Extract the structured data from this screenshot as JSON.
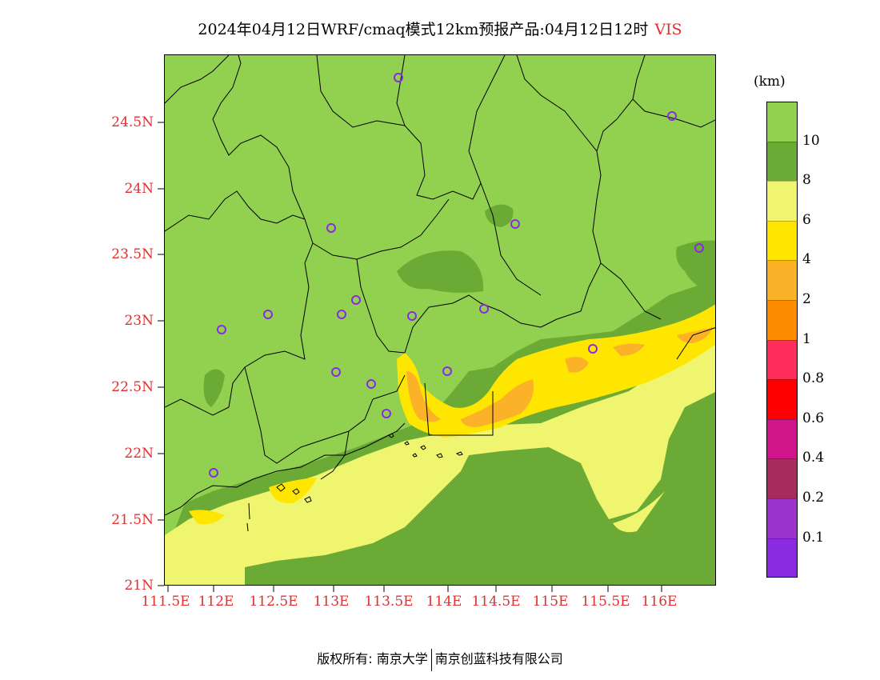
{
  "title": {
    "main": "2024年04月12日WRF/cmaq模式12km预报产品:04月12日12时",
    "variable": "VIS"
  },
  "axes": {
    "y_ticks": [
      "24.5N",
      "24N",
      "23.5N",
      "23N",
      "22.5N",
      "22N",
      "21.5N",
      "21N"
    ],
    "x_ticks": [
      "111.5E",
      "112E",
      "112.5E",
      "113E",
      "113.5E",
      "114E",
      "114.5E",
      "115E",
      "115.5E",
      "116E"
    ]
  },
  "colorbar": {
    "unit": "(km)",
    "labels": [
      "10",
      "8",
      "6",
      "4",
      "2",
      "1",
      "0.8",
      "0.6",
      "0.4",
      "0.2",
      "0.1"
    ],
    "colors": [
      "#92d050",
      "#6aaa35",
      "#f0f570",
      "#ffe600",
      "#fbb228",
      "#ff8c00",
      "#ff2d5a",
      "#ff0000",
      "#d0158a",
      "#a62c5c",
      "#9933cc",
      "#8a2be2"
    ]
  },
  "map": {
    "background_color": "#92d050",
    "stations": 17
  },
  "footer": {
    "left": "版权所有: 南京大学",
    "right": "南京创蓝科技有限公司"
  }
}
